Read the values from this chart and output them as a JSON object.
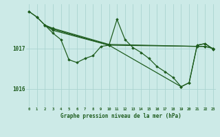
{
  "bg_color": "#cceae7",
  "grid_color": "#aad4d0",
  "line_color": "#1e5c1e",
  "marker_color": "#1e5c1e",
  "ylabel_ticks": [
    1016,
    1017
  ],
  "xlabel_ticks": [
    0,
    1,
    2,
    3,
    4,
    5,
    6,
    7,
    8,
    9,
    10,
    11,
    12,
    13,
    14,
    15,
    16,
    17,
    18,
    19,
    20,
    21,
    22,
    23
  ],
  "xlabel": "Graphe pression niveau de la mer (hPa)",
  "ylim": [
    1015.55,
    1018.1
  ],
  "xlim": [
    -0.3,
    23.3
  ],
  "line1": {
    "x": [
      0,
      1,
      2,
      3,
      10,
      21,
      22,
      23
    ],
    "y": [
      1017.92,
      1017.78,
      1017.58,
      1017.5,
      1017.1,
      1017.05,
      1017.05,
      1017.0
    ]
  },
  "line2": {
    "x": [
      2,
      3,
      4,
      5,
      6,
      7,
      8,
      9,
      10,
      11,
      12,
      13,
      14,
      15,
      16,
      17,
      18,
      19,
      20,
      21,
      22,
      23
    ],
    "y": [
      1017.58,
      1017.38,
      1017.22,
      1016.72,
      1016.65,
      1016.75,
      1016.82,
      1017.05,
      1017.08,
      1017.72,
      1017.22,
      1017.02,
      1016.9,
      1016.75,
      1016.55,
      1016.42,
      1016.28,
      1016.05,
      1016.15,
      1017.08,
      1017.12,
      1016.98
    ]
  },
  "line3": {
    "x": [
      2,
      3,
      10,
      22,
      23
    ],
    "y": [
      1017.58,
      1017.45,
      1017.08,
      1017.05,
      1017.0
    ]
  },
  "line4": {
    "x": [
      0,
      1,
      2,
      3,
      10,
      19,
      20,
      21,
      22,
      23
    ],
    "y": [
      1017.92,
      1017.78,
      1017.58,
      1017.48,
      1017.08,
      1016.05,
      1016.15,
      1017.08,
      1017.12,
      1016.98
    ]
  }
}
